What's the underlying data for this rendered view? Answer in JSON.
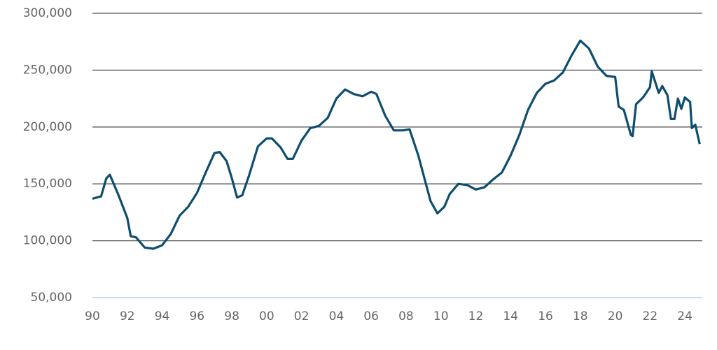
{
  "chart_data": {
    "type": "line",
    "x": [
      1990.0,
      1990.5,
      1990.8,
      1991.0,
      1991.5,
      1992.0,
      1992.2,
      1992.5,
      1993.0,
      1993.5,
      1994.0,
      1994.5,
      1995.0,
      1995.5,
      1996.0,
      1996.5,
      1997.0,
      1997.3,
      1997.7,
      1998.0,
      1998.3,
      1998.6,
      1999.0,
      1999.5,
      2000.0,
      2000.3,
      2000.8,
      2001.2,
      2001.5,
      2002.0,
      2002.5,
      2003.0,
      2003.5,
      2004.0,
      2004.5,
      2005.0,
      2005.5,
      2006.0,
      2006.3,
      2006.8,
      2007.3,
      2007.8,
      2008.2,
      2008.7,
      2009.0,
      2009.4,
      2009.8,
      2010.2,
      2010.5,
      2011.0,
      2011.5,
      2012.0,
      2012.5,
      2013.0,
      2013.5,
      2014.0,
      2014.5,
      2015.0,
      2015.5,
      2016.0,
      2016.5,
      2017.0,
      2017.5,
      2018.0,
      2018.5,
      2019.0,
      2019.5,
      2020.0,
      2020.2,
      2020.5,
      2020.9,
      2021.0,
      2021.2,
      2021.6,
      2022.0,
      2022.1,
      2022.5,
      2022.7,
      2023.0,
      2023.2,
      2023.4,
      2023.6,
      2023.8,
      2024.0,
      2024.3,
      2024.4,
      2024.6,
      2024.85
    ],
    "series": [
      {
        "color": "#0d4d6e",
        "values": [
          137000,
          139000,
          155000,
          158000,
          140000,
          120000,
          104000,
          103000,
          94000,
          93000,
          96000,
          106000,
          122000,
          130000,
          142000,
          160000,
          177000,
          178000,
          170000,
          155000,
          138000,
          140000,
          158000,
          183000,
          190000,
          190000,
          182000,
          172000,
          172000,
          188000,
          199000,
          201000,
          208000,
          225000,
          233000,
          229000,
          227000,
          231000,
          229000,
          210000,
          197000,
          197000,
          198000,
          175000,
          158000,
          135000,
          124000,
          130000,
          141000,
          150000,
          149000,
          145000,
          147000,
          154000,
          160000,
          175000,
          193000,
          215000,
          230000,
          238000,
          241000,
          248000,
          263000,
          276000,
          269000,
          253000,
          245000,
          244000,
          218000,
          215000,
          193000,
          192000,
          220000,
          226000,
          235000,
          249000,
          230000,
          236000,
          228000,
          207000,
          207000,
          225000,
          216000,
          226000,
          222000,
          199000,
          202000,
          185000
        ]
      }
    ],
    "xlim": [
      1990,
      2025
    ],
    "xticks": [
      {
        "value": 1990,
        "label": "90"
      },
      {
        "value": 1992,
        "label": "92"
      },
      {
        "value": 1994,
        "label": "94"
      },
      {
        "value": 1996,
        "label": "96"
      },
      {
        "value": 1998,
        "label": "98"
      },
      {
        "value": 2000,
        "label": "00"
      },
      {
        "value": 2002,
        "label": "02"
      },
      {
        "value": 2004,
        "label": "04"
      },
      {
        "value": 2006,
        "label": "06"
      },
      {
        "value": 2008,
        "label": "08"
      },
      {
        "value": 2010,
        "label": "10"
      },
      {
        "value": 2012,
        "label": "12"
      },
      {
        "value": 2014,
        "label": "14"
      },
      {
        "value": 2016,
        "label": "16"
      },
      {
        "value": 2018,
        "label": "18"
      },
      {
        "value": 2020,
        "label": "20"
      },
      {
        "value": 2022,
        "label": "22"
      },
      {
        "value": 2024,
        "label": "24"
      }
    ],
    "ylim": [
      50000,
      300000
    ],
    "yticks": [
      {
        "value": 50000,
        "label": "50,000"
      },
      {
        "value": 100000,
        "label": "100,000"
      },
      {
        "value": 150000,
        "label": "150,000"
      },
      {
        "value": 200000,
        "label": "200,000"
      },
      {
        "value": 250000,
        "label": "250,000"
      },
      {
        "value": 300000,
        "label": "300,000"
      }
    ],
    "grid": true
  }
}
